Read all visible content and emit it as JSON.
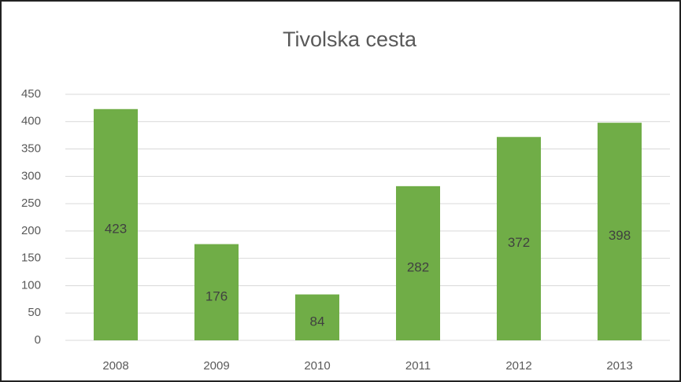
{
  "chart_data": {
    "type": "bar",
    "title": "Tivolska cesta",
    "categories": [
      "2008",
      "2009",
      "2010",
      "2011",
      "2012",
      "2013"
    ],
    "values": [
      423,
      176,
      84,
      282,
      372,
      398
    ],
    "color": "#70ad47",
    "ylim": [
      0,
      450
    ],
    "yticks": [
      0,
      50,
      100,
      150,
      200,
      250,
      300,
      350,
      400,
      450
    ],
    "grid": true
  }
}
